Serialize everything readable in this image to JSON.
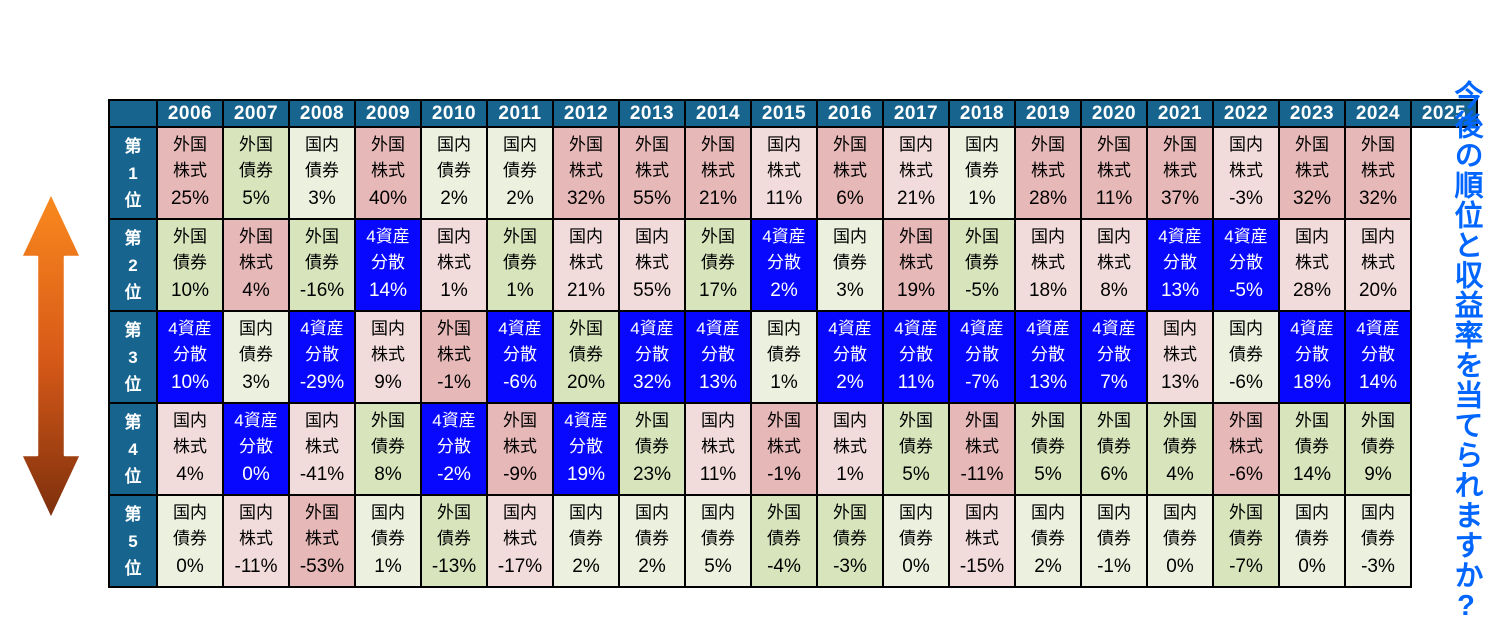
{
  "caption": {
    "text": "今後の順位と収益率を当てられますか?"
  },
  "colors": {
    "background": "#FFFFFF",
    "header_bg": "#17658F",
    "grid": "#000000",
    "caption": "#0066FF",
    "arrow_top": "#FA8A1E",
    "arrow_mid": "#D85A18",
    "arrow_bottom": "#7C2F0D"
  },
  "chart_data": {
    "type": "table",
    "title": "",
    "description": "年別の資産クラス収益率ランキング表(第1位〜第5位、2006〜2024年実績、2025年は空欄)",
    "years": [
      "2006",
      "2007",
      "2008",
      "2009",
      "2010",
      "2011",
      "2012",
      "2013",
      "2014",
      "2015",
      "2016",
      "2017",
      "2018",
      "2019",
      "2020",
      "2021",
      "2022",
      "2023",
      "2024",
      "2025"
    ],
    "assets": {
      "外国株式": {
        "label": "外国株式",
        "lines": [
          "外国",
          "株式"
        ],
        "bg": "#E6B8B7",
        "fg": "#000000"
      },
      "国内株式": {
        "label": "国内株式",
        "lines": [
          "国内",
          "株式"
        ],
        "bg": "#F2DCDB",
        "fg": "#000000"
      },
      "外国債券": {
        "label": "外国債券",
        "lines": [
          "外国",
          "債券"
        ],
        "bg": "#D7E4BC",
        "fg": "#000000"
      },
      "国内債券": {
        "label": "国内債券",
        "lines": [
          "国内",
          "債券"
        ],
        "bg": "#EBF1DE",
        "fg": "#000000"
      },
      "4資産分散": {
        "label": "4資産分散",
        "lines": [
          "4資産",
          "分散"
        ],
        "bg": "#0808FF",
        "fg": "#FFFFFF"
      }
    },
    "rows": [
      {
        "rank": "第1位",
        "cells": [
          [
            "外国株式",
            "25%"
          ],
          [
            "外国債券",
            "5%"
          ],
          [
            "国内債券",
            "3%"
          ],
          [
            "外国株式",
            "40%"
          ],
          [
            "国内債券",
            "2%"
          ],
          [
            "国内債券",
            "2%"
          ],
          [
            "外国株式",
            "32%"
          ],
          [
            "外国株式",
            "55%"
          ],
          [
            "外国株式",
            "21%"
          ],
          [
            "国内株式",
            "11%"
          ],
          [
            "外国株式",
            "6%"
          ],
          [
            "国内株式",
            "21%"
          ],
          [
            "国内債券",
            "1%"
          ],
          [
            "外国株式",
            "28%"
          ],
          [
            "外国株式",
            "11%"
          ],
          [
            "外国株式",
            "37%"
          ],
          [
            "国内株式",
            "-3%"
          ],
          [
            "外国株式",
            "32%"
          ],
          [
            "外国株式",
            "32%"
          ]
        ]
      },
      {
        "rank": "第2位",
        "cells": [
          [
            "外国債券",
            "10%"
          ],
          [
            "外国株式",
            "4%"
          ],
          [
            "外国債券",
            "-16%"
          ],
          [
            "4資産分散",
            "14%"
          ],
          [
            "国内株式",
            "1%"
          ],
          [
            "外国債券",
            "1%"
          ],
          [
            "国内株式",
            "21%"
          ],
          [
            "国内株式",
            "55%"
          ],
          [
            "外国債券",
            "17%"
          ],
          [
            "4資産分散",
            "2%"
          ],
          [
            "国内債券",
            "3%"
          ],
          [
            "外国株式",
            "19%"
          ],
          [
            "外国債券",
            "-5%"
          ],
          [
            "国内株式",
            "18%"
          ],
          [
            "国内株式",
            "8%"
          ],
          [
            "4資産分散",
            "13%"
          ],
          [
            "4資産分散",
            "-5%"
          ],
          [
            "国内株式",
            "28%"
          ],
          [
            "国内株式",
            "20%"
          ]
        ]
      },
      {
        "rank": "第3位",
        "cells": [
          [
            "4資産分散",
            "10%"
          ],
          [
            "国内債券",
            "3%"
          ],
          [
            "4資産分散",
            "-29%"
          ],
          [
            "国内株式",
            "9%"
          ],
          [
            "外国株式",
            "-1%"
          ],
          [
            "4資産分散",
            "-6%"
          ],
          [
            "外国債券",
            "20%"
          ],
          [
            "4資産分散",
            "32%"
          ],
          [
            "4資産分散",
            "13%"
          ],
          [
            "国内債券",
            "1%"
          ],
          [
            "4資産分散",
            "2%"
          ],
          [
            "4資産分散",
            "11%"
          ],
          [
            "4資産分散",
            "-7%"
          ],
          [
            "4資産分散",
            "13%"
          ],
          [
            "4資産分散",
            "7%"
          ],
          [
            "国内株式",
            "13%"
          ],
          [
            "国内債券",
            "-6%"
          ],
          [
            "4資産分散",
            "18%"
          ],
          [
            "4資産分散",
            "14%"
          ]
        ]
      },
      {
        "rank": "第4位",
        "cells": [
          [
            "国内株式",
            "4%"
          ],
          [
            "4資産分散",
            "0%"
          ],
          [
            "国内株式",
            "-41%"
          ],
          [
            "外国債券",
            "8%"
          ],
          [
            "4資産分散",
            "-2%"
          ],
          [
            "外国株式",
            "-9%"
          ],
          [
            "4資産分散",
            "19%"
          ],
          [
            "外国債券",
            "23%"
          ],
          [
            "国内株式",
            "11%"
          ],
          [
            "外国株式",
            "-1%"
          ],
          [
            "国内株式",
            "1%"
          ],
          [
            "外国債券",
            "5%"
          ],
          [
            "外国株式",
            "-11%"
          ],
          [
            "外国債券",
            "5%"
          ],
          [
            "外国債券",
            "6%"
          ],
          [
            "外国債券",
            "4%"
          ],
          [
            "外国株式",
            "-6%"
          ],
          [
            "外国債券",
            "14%"
          ],
          [
            "外国債券",
            "9%"
          ]
        ]
      },
      {
        "rank": "第5位",
        "cells": [
          [
            "国内債券",
            "0%"
          ],
          [
            "国内株式",
            "-11%"
          ],
          [
            "外国株式",
            "-53%"
          ],
          [
            "国内債券",
            "1%"
          ],
          [
            "外国債券",
            "-13%"
          ],
          [
            "国内株式",
            "-17%"
          ],
          [
            "国内債券",
            "2%"
          ],
          [
            "国内債券",
            "2%"
          ],
          [
            "国内債券",
            "5%"
          ],
          [
            "外国債券",
            "-4%"
          ],
          [
            "外国債券",
            "-3%"
          ],
          [
            "国内債券",
            "0%"
          ],
          [
            "国内株式",
            "-15%"
          ],
          [
            "国内債券",
            "2%"
          ],
          [
            "国内債券",
            "-1%"
          ],
          [
            "国内債券",
            "0%"
          ],
          [
            "外国債券",
            "-7%"
          ],
          [
            "国内債券",
            "0%"
          ],
          [
            "国内債券",
            "-3%"
          ]
        ]
      }
    ]
  }
}
